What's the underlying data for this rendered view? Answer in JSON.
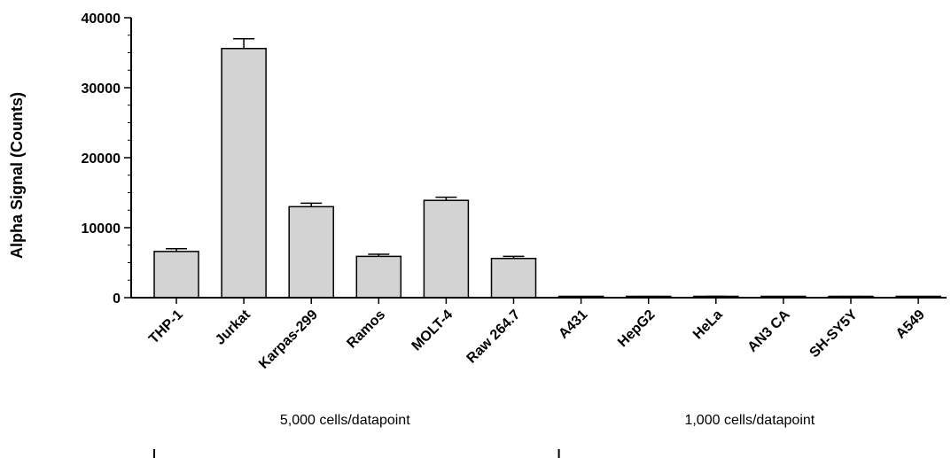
{
  "chart_data": {
    "type": "bar",
    "ylabel": "Alpha Signal (Counts)",
    "xlabel": "",
    "ylim": [
      0,
      40000
    ],
    "yticks": [
      0,
      10000,
      20000,
      30000,
      40000
    ],
    "ytick_labels": [
      "0",
      "10000",
      "20000",
      "30000",
      "40000"
    ],
    "categories": [
      "THP-1",
      "Jurkat",
      "Karpas-299",
      "Ramos",
      "MOLT-4",
      "Raw 264.7",
      "A431",
      "HepG2",
      "HeLa",
      "AN3 CA",
      "SH-SY5Y",
      "A549"
    ],
    "values": [
      6600,
      35600,
      13000,
      5900,
      13900,
      5600,
      60,
      120,
      130,
      50,
      120,
      50
    ],
    "errors": [
      400,
      1400,
      500,
      300,
      450,
      300,
      20,
      50,
      60,
      20,
      50,
      20
    ],
    "bar_color": "#d3d3d3",
    "groups": [
      {
        "label": "5,000 cells/datapoint",
        "start": 0,
        "end": 5
      },
      {
        "label": "1,000 cells/datapoint",
        "start": 6,
        "end": 11
      }
    ]
  }
}
